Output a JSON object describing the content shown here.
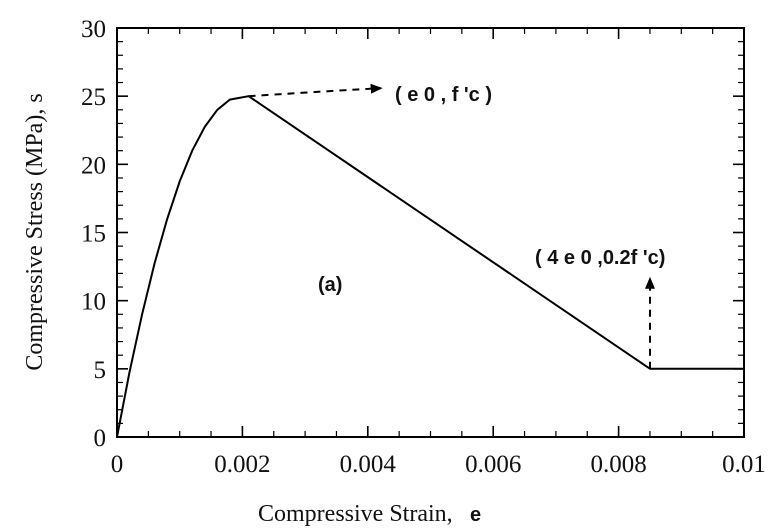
{
  "chart_data": {
    "type": "line",
    "xlabel": "Compressive Strain,",
    "xlabel_symbol": "e",
    "ylabel": "Compressive Stress (MPa), s",
    "xlim": [
      0,
      0.01
    ],
    "ylim": [
      0,
      30
    ],
    "x_ticks": [
      0,
      0.002,
      0.004,
      0.006,
      0.008,
      0.01
    ],
    "x_tick_labels": [
      "0",
      "0.002",
      "0.004",
      "0.006",
      "0.008",
      "0.01"
    ],
    "y_ticks": [
      0,
      5,
      10,
      15,
      20,
      25,
      30
    ],
    "y_tick_labels": [
      "0",
      "5",
      "10",
      "15",
      "20",
      "25",
      "30"
    ],
    "grid": false,
    "series": [
      {
        "color": "#000000",
        "points": [
          [
            0,
            0
          ],
          [
            0.0002,
            4.75
          ],
          [
            0.0004,
            9.0
          ],
          [
            0.0006,
            12.75
          ],
          [
            0.0008,
            16.0
          ],
          [
            0.001,
            18.75
          ],
          [
            0.0012,
            21.0
          ],
          [
            0.0014,
            22.75
          ],
          [
            0.0016,
            24.0
          ],
          [
            0.0018,
            24.75
          ],
          [
            0.0021,
            25.0
          ],
          [
            0.0085,
            5.0
          ],
          [
            0.01,
            5.0
          ]
        ]
      }
    ],
    "annotations": [
      {
        "text": "( e 0 , f 'c )",
        "point": [
          0.0021,
          25.0
        ],
        "arrow": "dashed"
      },
      {
        "text": "( 4 e 0 ,0.2f 'c)",
        "point": [
          0.0085,
          5.0
        ],
        "arrow": "dashed"
      },
      {
        "text": "(a)",
        "point": [
          0.0035,
          11.5
        ],
        "arrow": "none"
      }
    ]
  }
}
